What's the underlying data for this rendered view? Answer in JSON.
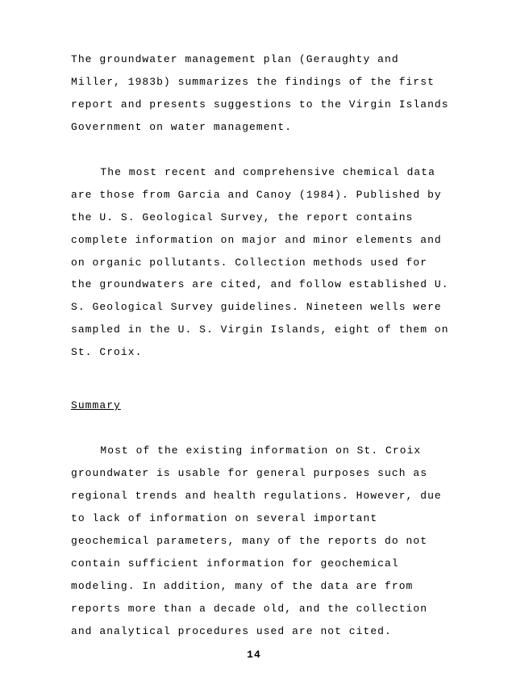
{
  "document": {
    "paragraphs": {
      "p1": "The groundwater management plan (Geraughty and Miller, 1983b) summarizes the findings of the first report and presents suggestions to the Virgin Islands Government on water management.",
      "p2": "The most recent and comprehensive chemical data are those from Garcia and Canoy (1984).  Published by the U. S. Geological Survey, the report contains complete information on major and minor elements and on organic pollutants.  Collection methods used for the groundwaters are cited, and follow established U. S. Geological Survey guidelines.  Nineteen wells were sampled in the U. S. Virgin Islands, eight of them on St. Croix.",
      "p3": "Most of the existing information on St. Croix groundwater is usable for general purposes such as regional trends and health regulations.  However, due to lack of information on several important geochemical parameters, many of the reports do not contain sufficient information for geochemical modeling.  In addition, many of the data are from reports more than a decade old, and the collection and analytical procedures used are not cited."
    },
    "heading": "Summary",
    "pageNumber": "14"
  },
  "style": {
    "fontFamily": "Courier New",
    "fontSize": 13,
    "textColor": "#000000",
    "backgroundColor": "#ffffff",
    "lineHeight": 2.15,
    "letterSpacing": "0.08em"
  }
}
